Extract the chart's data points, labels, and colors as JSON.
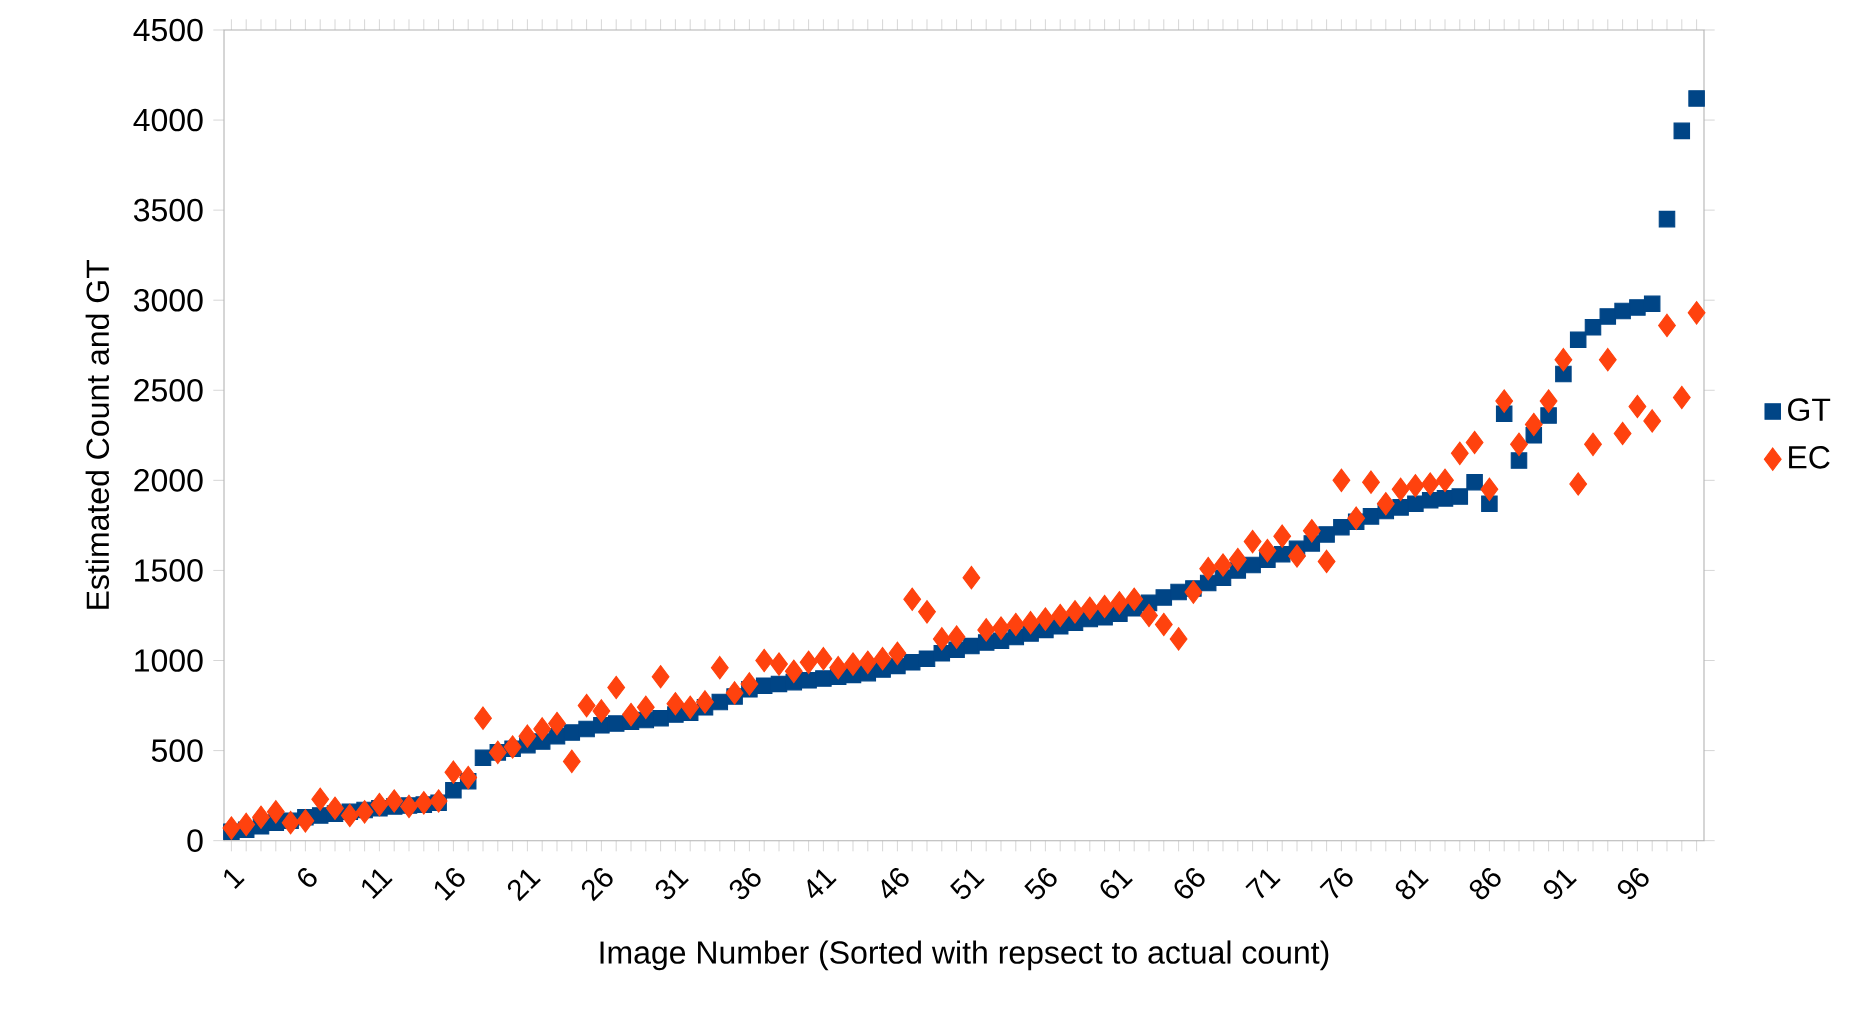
{
  "chart_data": {
    "type": "scatter",
    "xlabel": "Image Number (Sorted with repsect to actual count)",
    "ylabel": "Estimated Count and GT",
    "categories": [
      "1",
      null,
      null,
      null,
      null,
      "6",
      null,
      null,
      null,
      null,
      "11",
      null,
      null,
      null,
      null,
      "16",
      null,
      null,
      null,
      null,
      "21",
      null,
      null,
      null,
      null,
      "26",
      null,
      null,
      null,
      null,
      "31",
      null,
      null,
      null,
      null,
      "36",
      null,
      null,
      null,
      null,
      "41",
      null,
      null,
      null,
      null,
      "46",
      null,
      null,
      null,
      null,
      "51",
      null,
      null,
      null,
      null,
      "56",
      null,
      null,
      null,
      null,
      "61",
      null,
      null,
      null,
      null,
      "66",
      null,
      null,
      null,
      null,
      "71",
      null,
      null,
      null,
      null,
      "76",
      null,
      null,
      null,
      null,
      "81",
      null,
      null,
      null,
      null,
      "86",
      null,
      null,
      null,
      null,
      "91",
      null,
      null,
      null,
      null,
      "96",
      null,
      null,
      null,
      null
    ],
    "ylim": [
      0,
      4500
    ],
    "yticks": [
      0,
      500,
      1000,
      1500,
      2000,
      2500,
      3000,
      3500,
      4000,
      4500
    ],
    "legend": "right",
    "series": [
      {
        "name": "GT",
        "color": "#004586",
        "marker": "square",
        "values": [
          50,
          60,
          80,
          100,
          110,
          130,
          140,
          150,
          160,
          170,
          180,
          190,
          195,
          200,
          210,
          280,
          330,
          460,
          490,
          510,
          530,
          550,
          580,
          600,
          620,
          640,
          650,
          660,
          670,
          680,
          700,
          710,
          740,
          770,
          800,
          840,
          860,
          870,
          880,
          890,
          900,
          910,
          920,
          930,
          950,
          970,
          990,
          1010,
          1040,
          1060,
          1080,
          1100,
          1110,
          1130,
          1150,
          1170,
          1190,
          1210,
          1230,
          1240,
          1260,
          1290,
          1320,
          1350,
          1380,
          1400,
          1430,
          1460,
          1500,
          1530,
          1560,
          1590,
          1620,
          1650,
          1700,
          1740,
          1770,
          1800,
          1830,
          1850,
          1870,
          1890,
          1900,
          1910,
          1990,
          1870,
          2370,
          2110,
          2250,
          2360,
          2590,
          2780,
          2850,
          2910,
          2940,
          2960,
          2980,
          3450,
          3940,
          4120
        ]
      },
      {
        "name": "EC",
        "color": "#ff420e",
        "marker": "diamond",
        "values": [
          70,
          90,
          130,
          160,
          100,
          110,
          230,
          180,
          140,
          160,
          200,
          220,
          190,
          210,
          220,
          380,
          350,
          680,
          490,
          520,
          580,
          620,
          650,
          440,
          750,
          720,
          850,
          700,
          740,
          910,
          760,
          740,
          770,
          960,
          820,
          870,
          1000,
          980,
          940,
          990,
          1010,
          960,
          980,
          990,
          1010,
          1040,
          1340,
          1270,
          1120,
          1130,
          1460,
          1170,
          1180,
          1200,
          1210,
          1230,
          1250,
          1270,
          1290,
          1300,
          1320,
          1340,
          1250,
          1200,
          1120,
          1380,
          1510,
          1530,
          1560,
          1660,
          1610,
          1690,
          1580,
          1720,
          1550,
          2000,
          1790,
          1990,
          1870,
          1950,
          1970,
          1980,
          2000,
          2150,
          2210,
          1950,
          2440,
          2200,
          2310,
          2440,
          2670,
          1980,
          2200,
          2670,
          2260,
          2410,
          2330,
          2860,
          2460,
          2930
        ]
      }
    ]
  }
}
